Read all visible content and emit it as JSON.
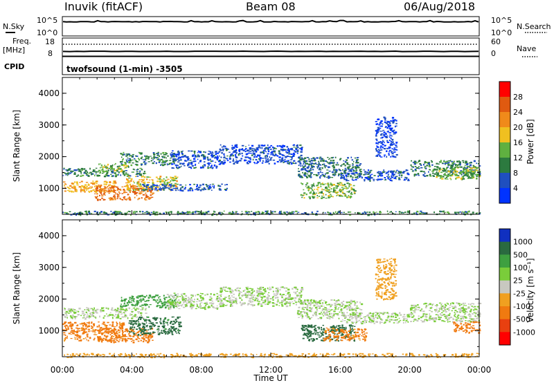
{
  "header": {
    "station": "Inuvik (fitACF)",
    "beam": "Beam 08",
    "date": "06/Aug/2018"
  },
  "nsky_panel": {
    "left_label": "N.Sky",
    "left_ticks": [
      "10^5",
      "10^0"
    ],
    "right_label": "N.Search",
    "right_ticks": [
      "10^5",
      "10^0"
    ]
  },
  "freq_panel": {
    "left_label_top": "Freq.",
    "left_label_unit": "[MHz]",
    "left_ticks": [
      "18",
      "8"
    ],
    "right_label": "Nave",
    "right_ticks": [
      "60",
      "0"
    ]
  },
  "cpid": {
    "label": "CPID",
    "value": "twofsound (1-min) -3505"
  },
  "colors": {
    "power_scale": [
      "#0033ff",
      "#1f4fbf",
      "#2c7a3f",
      "#5fb040",
      "#f0c020",
      "#f08a1a",
      "#e05a10",
      "#ff0000"
    ],
    "velocity_scale": [
      "#1030c0",
      "#2a6a40",
      "#3ea040",
      "#7acd3a",
      "#c8c8c0",
      "#f0a020",
      "#f07a10",
      "#e84010",
      "#ff0000"
    ]
  },
  "chart_data": [
    {
      "type": "heatmap",
      "name": "power",
      "ylabel": "Slant Range [km]",
      "y_ticks": [
        "4000",
        "3000",
        "2000",
        "1000"
      ],
      "ylim": [
        180,
        4500
      ],
      "colorbar_label": "Power [dB]",
      "colorbar_ticks": [
        "28",
        "24",
        "20",
        "16",
        "12",
        "8",
        "4"
      ],
      "colorbar_range": [
        0,
        32
      ],
      "x_ticks": [
        "00:00",
        "04:00",
        "08:00",
        "12:00",
        "16:00",
        "20:00",
        "00:00"
      ],
      "regions": [
        {
          "t0": 0.0,
          "t1": 4.8,
          "r0": 1400,
          "r1": 1650,
          "v": 10
        },
        {
          "t0": 2.0,
          "t1": 3.8,
          "r0": 1550,
          "r1": 1800,
          "v": 15
        },
        {
          "t0": 3.3,
          "t1": 6.5,
          "r0": 1750,
          "r1": 2150,
          "v": 10
        },
        {
          "t0": 0.0,
          "t1": 3.0,
          "r0": 900,
          "r1": 1250,
          "v": 20
        },
        {
          "t0": 1.8,
          "t1": 5.2,
          "r0": 650,
          "r1": 1100,
          "v": 24
        },
        {
          "t0": 3.6,
          "t1": 6.6,
          "r0": 950,
          "r1": 1400,
          "v": 18
        },
        {
          "t0": 4.5,
          "t1": 9.5,
          "r0": 950,
          "r1": 1150,
          "v": 6
        },
        {
          "t0": 6.2,
          "t1": 9.0,
          "r0": 1650,
          "r1": 2200,
          "v": 5
        },
        {
          "t0": 9.0,
          "t1": 13.8,
          "r0": 1800,
          "r1": 2400,
          "v": 5
        },
        {
          "t0": 13.5,
          "t1": 17.2,
          "r0": 1350,
          "r1": 2000,
          "v": 8
        },
        {
          "t0": 13.7,
          "t1": 16.8,
          "r0": 700,
          "r1": 1200,
          "v": 14
        },
        {
          "t0": 16.0,
          "t1": 20.0,
          "r0": 1250,
          "r1": 1600,
          "v": 6
        },
        {
          "t0": 20.0,
          "t1": 24.0,
          "r0": 1400,
          "r1": 1900,
          "v": 10
        },
        {
          "t0": 21.5,
          "t1": 24.0,
          "r0": 1300,
          "r1": 1700,
          "v": 14
        },
        {
          "t0": 18.0,
          "t1": 19.2,
          "r0": 2000,
          "r1": 3300,
          "v": 4
        },
        {
          "t0": 0.0,
          "t1": 24.0,
          "r0": 180,
          "r1": 300,
          "v": 10
        }
      ]
    },
    {
      "type": "heatmap",
      "name": "velocity",
      "ylabel": "Slant Range [km]",
      "y_ticks": [
        "4000",
        "3000",
        "2000",
        "1000"
      ],
      "ylim": [
        180,
        4500
      ],
      "colorbar_label": "Velocity [m s⁻¹]",
      "colorbar_ticks": [
        "1000",
        "500",
        "100",
        "25",
        "-25",
        "-100",
        "-500",
        "-1000"
      ],
      "colorbar_range": [
        -1000,
        1000
      ],
      "x_ticks": [
        "00:00",
        "04:00",
        "08:00",
        "12:00",
        "16:00",
        "20:00",
        "00:00"
      ],
      "xlabel": "Time UT",
      "regions": [
        {
          "t0": 0.0,
          "t1": 4.8,
          "r0": 1400,
          "r1": 1750,
          "v": 0
        },
        {
          "t0": 3.3,
          "t1": 6.5,
          "r0": 1750,
          "r1": 2150,
          "v": 50
        },
        {
          "t0": 0.0,
          "t1": 3.5,
          "r0": 700,
          "r1": 1300,
          "v": -150
        },
        {
          "t0": 2.0,
          "t1": 5.2,
          "r0": 650,
          "r1": 1100,
          "v": -200
        },
        {
          "t0": 3.8,
          "t1": 6.8,
          "r0": 900,
          "r1": 1450,
          "v": 150
        },
        {
          "t0": 6.0,
          "t1": 9.0,
          "r0": 1700,
          "r1": 2200,
          "v": 0
        },
        {
          "t0": 9.0,
          "t1": 13.8,
          "r0": 1800,
          "r1": 2400,
          "v": 0
        },
        {
          "t0": 13.5,
          "t1": 17.2,
          "r0": 1400,
          "r1": 2000,
          "v": 0
        },
        {
          "t0": 13.7,
          "t1": 16.8,
          "r0": 700,
          "r1": 1200,
          "v": 200
        },
        {
          "t0": 15.0,
          "t1": 17.5,
          "r0": 700,
          "r1": 1100,
          "v": -150
        },
        {
          "t0": 16.0,
          "t1": 20.0,
          "r0": 1250,
          "r1": 1600,
          "v": 0
        },
        {
          "t0": 20.0,
          "t1": 24.0,
          "r0": 1300,
          "r1": 1900,
          "v": 0
        },
        {
          "t0": 22.5,
          "t1": 24.0,
          "r0": 950,
          "r1": 1300,
          "v": -200
        },
        {
          "t0": 18.0,
          "t1": 19.2,
          "r0": 2000,
          "r1": 3300,
          "v": -60
        },
        {
          "t0": 0.0,
          "t1": 24.0,
          "r0": 180,
          "r1": 300,
          "v": -50
        }
      ]
    }
  ]
}
